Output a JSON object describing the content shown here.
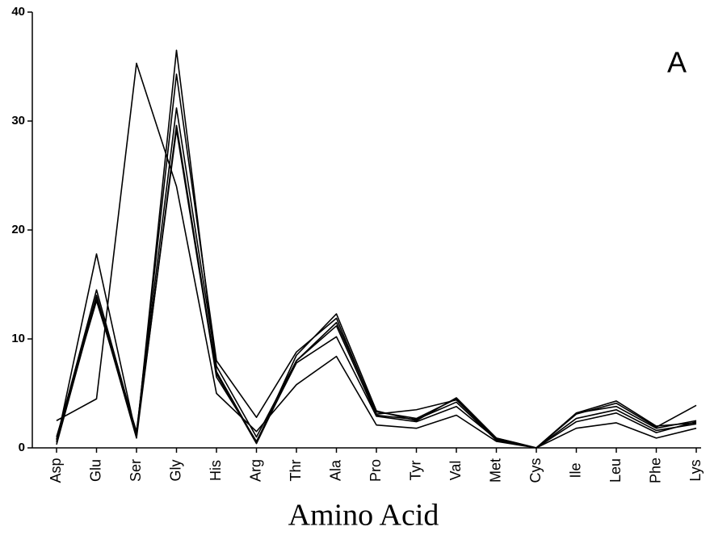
{
  "chart_data": {
    "type": "line",
    "annotation": "A",
    "x_label": "Amino Acid",
    "categories": [
      "Asp",
      "Glu",
      "Ser",
      "Gly",
      "His",
      "Arg",
      "Thr",
      "Ala",
      "Pro",
      "Tyr",
      "Val",
      "Met",
      "Cys",
      "Ile",
      "Leu",
      "Phe",
      "Lys"
    ],
    "series": [
      {
        "color": "#000000",
        "values": [
          2.5,
          4.5,
          35.3,
          24,
          5,
          1.5,
          5.8,
          8.4,
          2.1,
          1.8,
          3,
          0.6,
          0,
          1.8,
          2.3,
          0.9,
          1.8
        ]
      },
      {
        "color": "#000000",
        "values": [
          0.5,
          17.8,
          1,
          36.5,
          7,
          0.5,
          8.5,
          12.3,
          3.4,
          2.5,
          4.6,
          0.9,
          0,
          3.2,
          4.3,
          2,
          2.3
        ]
      },
      {
        "color": "#000000",
        "values": [
          0.8,
          14.5,
          1.3,
          34.3,
          8,
          2.8,
          8.8,
          11.9,
          3.1,
          3.5,
          4.4,
          0.8,
          0,
          3.1,
          4.1,
          1.9,
          3.9
        ]
      },
      {
        "color": "#000000",
        "values": [
          1,
          13.5,
          1.5,
          31.2,
          7.5,
          1,
          8,
          11.5,
          3.3,
          2.7,
          4.5,
          0.9,
          0,
          3.2,
          3.8,
          1.8,
          2.5
        ]
      },
      {
        "color": "#000000",
        "values": [
          0.3,
          13.8,
          0.9,
          29.6,
          6.8,
          0.4,
          8,
          11.2,
          3,
          2.6,
          4.2,
          0.7,
          0,
          2.7,
          3.5,
          1.6,
          2.2
        ]
      },
      {
        "color": "#000000",
        "values": [
          0.7,
          14,
          1.2,
          29.2,
          6.5,
          0.6,
          7.8,
          10.2,
          2.9,
          2.4,
          3.8,
          0.8,
          0,
          2.4,
          3.2,
          1.4,
          2.4
        ]
      }
    ],
    "ylim": [
      0,
      40
    ],
    "yticks": [
      0,
      10,
      20,
      30,
      40
    ],
    "grid": false
  }
}
